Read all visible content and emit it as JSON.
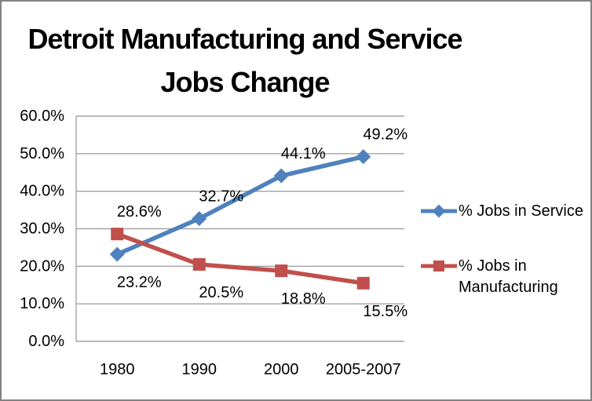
{
  "window": {
    "background": "#FFFFFF",
    "border_color": "#828282"
  },
  "title": {
    "text": "Detroit Manufacturing and Service Jobs Change",
    "lines": [
      "Detroit Manufacturing and Service",
      "Jobs Change"
    ]
  },
  "chart_data": {
    "type": "line",
    "title": "Detroit Manufacturing and Service Jobs Change",
    "categories": [
      "1980",
      "1990",
      "2000",
      "2005-2007"
    ],
    "series": [
      {
        "name": "% Jobs in Service",
        "color": "#4F81BD",
        "marker": "diamond",
        "values": [
          23.2,
          32.7,
          44.1,
          49.2
        ],
        "labels": [
          "23.2%",
          "32.7%",
          "44.1%",
          "49.2%"
        ],
        "label_side": [
          "below",
          "above",
          "above",
          "above"
        ]
      },
      {
        "name": "% Jobs in Manufacturing",
        "color": "#C0504D",
        "marker": "square",
        "values": [
          28.6,
          20.5,
          18.8,
          15.5
        ],
        "labels": [
          "28.6%",
          "20.5%",
          "18.8%",
          "15.5%"
        ],
        "label_side": [
          "above",
          "below",
          "below",
          "below"
        ]
      }
    ],
    "xlabel": "",
    "ylabel": "",
    "ylim": [
      0,
      60
    ],
    "ytick_values": [
      0,
      10,
      20,
      30,
      40,
      50,
      60
    ],
    "ytick_labels": [
      "0.0%",
      "10.0%",
      "20.0%",
      "30.0%",
      "40.0%",
      "50.0%",
      "60.0%"
    ],
    "grid": true,
    "legend_position": "right",
    "data_labels": true,
    "colors": {
      "gridline": "#A3A3A3",
      "axis": "#A3A3A3",
      "text": "#000000"
    }
  }
}
